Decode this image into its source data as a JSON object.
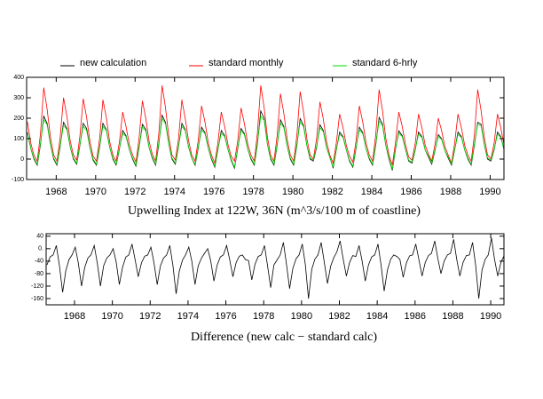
{
  "chart_data": [
    {
      "type": "line",
      "title": "Upwelling Index at 122W, 36N (m^3/s/100 m of coastline)",
      "legend": "top",
      "grid": false,
      "xlim": [
        1966.5,
        1990.7
      ],
      "xticks": [
        1968,
        1970,
        1972,
        1974,
        1976,
        1978,
        1980,
        1982,
        1984,
        1986,
        1988,
        1990
      ],
      "ylim": [
        -100,
        400
      ],
      "yticks": [
        -100,
        0,
        100,
        200,
        300,
        400
      ],
      "x": [
        1966.54,
        1966.71,
        1966.87,
        1967.04,
        1967.2,
        1967.37,
        1967.54,
        1967.71,
        1967.87,
        1968.04,
        1968.2,
        1968.37,
        1968.54,
        1968.71,
        1968.87,
        1969.04,
        1969.2,
        1969.37,
        1969.54,
        1969.71,
        1969.87,
        1970.04,
        1970.2,
        1970.37,
        1970.54,
        1970.71,
        1970.87,
        1971.04,
        1971.2,
        1971.37,
        1971.54,
        1971.71,
        1971.87,
        1972.04,
        1972.2,
        1972.37,
        1972.54,
        1972.71,
        1972.87,
        1973.04,
        1973.2,
        1973.37,
        1973.54,
        1973.71,
        1973.87,
        1974.04,
        1974.2,
        1974.37,
        1974.54,
        1974.71,
        1974.87,
        1975.04,
        1975.2,
        1975.37,
        1975.54,
        1975.71,
        1975.87,
        1976.04,
        1976.2,
        1976.37,
        1976.54,
        1976.71,
        1976.87,
        1977.04,
        1977.2,
        1977.37,
        1977.54,
        1977.71,
        1977.87,
        1978.04,
        1978.2,
        1978.37,
        1978.54,
        1978.71,
        1978.87,
        1979.04,
        1979.2,
        1979.37,
        1979.54,
        1979.71,
        1979.87,
        1980.04,
        1980.2,
        1980.37,
        1980.54,
        1980.71,
        1980.87,
        1981.04,
        1981.2,
        1981.37,
        1981.54,
        1981.71,
        1981.87,
        1982.04,
        1982.2,
        1982.37,
        1982.54,
        1982.71,
        1982.87,
        1983.04,
        1983.2,
        1983.37,
        1983.54,
        1983.71,
        1983.87,
        1984.04,
        1984.2,
        1984.37,
        1984.54,
        1984.71,
        1984.87,
        1985.04,
        1985.2,
        1985.37,
        1985.54,
        1985.71,
        1985.87,
        1986.04,
        1986.2,
        1986.37,
        1986.54,
        1986.71,
        1986.87,
        1987.04,
        1987.2,
        1987.37,
        1987.54,
        1987.71,
        1987.87,
        1988.04,
        1988.2,
        1988.37,
        1988.54,
        1988.71,
        1988.87,
        1989.04,
        1989.2,
        1989.37,
        1989.54,
        1989.71,
        1989.87,
        1990.04,
        1990.2,
        1990.37,
        1990.54,
        1990.71
      ],
      "series": [
        {
          "name": "new calculation",
          "color": "#000000",
          "values": [
            130,
            52,
            0,
            -30,
            70,
            210,
            175,
            70,
            0,
            -30,
            60,
            180,
            150,
            60,
            0,
            -25,
            65,
            175,
            150,
            55,
            -5,
            -30,
            58,
            175,
            145,
            58,
            0,
            -30,
            46,
            140,
            115,
            46,
            0,
            -35,
            55,
            170,
            145,
            55,
            5,
            -30,
            72,
            215,
            180,
            72,
            0,
            -25,
            60,
            175,
            145,
            60,
            5,
            -30,
            52,
            156,
            130,
            52,
            0,
            -40,
            46,
            140,
            115,
            46,
            -5,
            -45,
            50,
            150,
            125,
            50,
            0,
            -30,
            72,
            235,
            200,
            72,
            0,
            -30,
            64,
            192,
            160,
            64,
            0,
            -30,
            66,
            198,
            165,
            66,
            0,
            -10,
            56,
            168,
            140,
            56,
            10,
            -45,
            44,
            132,
            110,
            44,
            -10,
            -40,
            52,
            156,
            130,
            52,
            0,
            -30,
            68,
            204,
            170,
            68,
            0,
            -55,
            46,
            138,
            115,
            46,
            -10,
            -20,
            44,
            132,
            110,
            44,
            10,
            -25,
            40,
            120,
            100,
            40,
            5,
            -30,
            44,
            132,
            110,
            44,
            0,
            -30,
            68,
            180,
            170,
            68,
            0,
            -10,
            44,
            132,
            110,
            44
          ]
        },
        {
          "name": "standard monthly",
          "color": "#ff0000",
          "values": [
            182,
            78,
            20,
            -10,
            123,
            350,
            245,
            105,
            20,
            -10,
            105,
            300,
            210,
            90,
            20,
            -5,
            110,
            295,
            205,
            85,
            15,
            -10,
            100,
            290,
            205,
            85,
            20,
            -10,
            80,
            230,
            160,
            70,
            20,
            -15,
            100,
            285,
            200,
            85,
            25,
            -10,
            126,
            360,
            252,
            108,
            20,
            -5,
            100,
            290,
            200,
            90,
            20,
            -10,
            91,
            260,
            182,
            78,
            20,
            -20,
            80,
            230,
            160,
            70,
            15,
            -10,
            88,
            250,
            175,
            75,
            20,
            -10,
            126,
            360,
            252,
            108,
            20,
            -10,
            112,
            320,
            224,
            96,
            20,
            -10,
            116,
            330,
            231,
            99,
            20,
            0,
            98,
            280,
            196,
            84,
            20,
            -20,
            77,
            220,
            154,
            66,
            15,
            -15,
            91,
            260,
            182,
            78,
            20,
            -10,
            119,
            340,
            238,
            102,
            20,
            -30,
            80,
            230,
            161,
            69,
            10,
            -5,
            77,
            220,
            154,
            66,
            25,
            -10,
            70,
            200,
            140,
            60,
            20,
            -20,
            77,
            220,
            154,
            66,
            20,
            -10,
            119,
            340,
            238,
            102,
            20,
            0,
            77,
            220,
            154,
            66
          ]
        },
        {
          "name": "standard 6-hrly",
          "color": "#00dd00",
          "values": [
            125,
            52,
            5,
            -25,
            77,
            193,
            168,
            70,
            5,
            -25,
            66,
            165,
            144,
            60,
            5,
            -20,
            70,
            160,
            140,
            55,
            0,
            -25,
            64,
            160,
            140,
            58,
            5,
            -25,
            50,
            127,
            110,
            46,
            5,
            -30,
            62,
            157,
            138,
            55,
            10,
            -25,
            80,
            198,
            173,
            72,
            5,
            -20,
            64,
            160,
            140,
            58,
            5,
            -25,
            57,
            143,
            125,
            52,
            5,
            -35,
            50,
            127,
            110,
            46,
            0,
            -40,
            55,
            138,
            120,
            50,
            5,
            -25,
            80,
            210,
            190,
            72,
            5,
            -25,
            70,
            176,
            154,
            64,
            5,
            -25,
            73,
            182,
            158,
            66,
            5,
            -5,
            62,
            154,
            134,
            56,
            10,
            -40,
            48,
            121,
            106,
            44,
            -5,
            -35,
            57,
            143,
            125,
            52,
            5,
            -25,
            75,
            187,
            163,
            68,
            5,
            -50,
            51,
            127,
            110,
            46,
            -5,
            -15,
            48,
            121,
            106,
            44,
            15,
            -20,
            44,
            110,
            96,
            40,
            10,
            -25,
            48,
            121,
            106,
            44,
            5,
            -25,
            75,
            170,
            163,
            68,
            5,
            -5,
            48,
            121,
            106,
            44
          ]
        }
      ]
    },
    {
      "type": "line",
      "title": "Difference (new calc − standard calc)",
      "grid": false,
      "xlim": [
        1966.5,
        1990.7
      ],
      "xticks": [
        1968,
        1970,
        1972,
        1974,
        1976,
        1978,
        1980,
        1982,
        1984,
        1986,
        1988,
        1990
      ],
      "ylim": [
        -180,
        48
      ],
      "yticks": [
        -160,
        -120,
        -80,
        -40,
        {
          "value": 0,
          "label": "0."
        },
        40
      ],
      "x": [
        1966.54,
        1966.71,
        1966.87,
        1967.04,
        1967.2,
        1967.37,
        1967.54,
        1967.71,
        1967.87,
        1968.04,
        1968.2,
        1968.37,
        1968.54,
        1968.71,
        1968.87,
        1969.04,
        1969.2,
        1969.37,
        1969.54,
        1969.71,
        1969.87,
        1970.04,
        1970.2,
        1970.37,
        1970.54,
        1970.71,
        1970.87,
        1971.04,
        1971.2,
        1971.37,
        1971.54,
        1971.71,
        1971.87,
        1972.04,
        1972.2,
        1972.37,
        1972.54,
        1972.71,
        1972.87,
        1973.04,
        1973.2,
        1973.37,
        1973.54,
        1973.71,
        1973.87,
        1974.04,
        1974.2,
        1974.37,
        1974.54,
        1974.71,
        1974.87,
        1975.04,
        1975.2,
        1975.37,
        1975.54,
        1975.71,
        1975.87,
        1976.04,
        1976.2,
        1976.37,
        1976.54,
        1976.71,
        1976.87,
        1977.04,
        1977.2,
        1977.37,
        1977.54,
        1977.71,
        1977.87,
        1978.04,
        1978.2,
        1978.37,
        1978.54,
        1978.71,
        1978.87,
        1979.04,
        1979.2,
        1979.37,
        1979.54,
        1979.71,
        1979.87,
        1980.04,
        1980.2,
        1980.37,
        1980.54,
        1980.71,
        1980.87,
        1981.04,
        1981.2,
        1981.37,
        1981.54,
        1981.71,
        1981.87,
        1982.04,
        1982.2,
        1982.37,
        1982.54,
        1982.71,
        1982.87,
        1983.04,
        1983.2,
        1983.37,
        1983.54,
        1983.71,
        1983.87,
        1984.04,
        1984.2,
        1984.37,
        1984.54,
        1984.71,
        1984.87,
        1985.04,
        1985.2,
        1985.37,
        1985.54,
        1985.71,
        1985.87,
        1986.04,
        1986.2,
        1986.37,
        1986.54,
        1986.71,
        1986.87,
        1987.04,
        1987.2,
        1987.37,
        1987.54,
        1987.71,
        1987.87,
        1988.04,
        1988.2,
        1988.37,
        1988.54,
        1988.71,
        1988.87,
        1989.04,
        1989.2,
        1989.37,
        1989.54,
        1989.71,
        1989.87,
        1990.04,
        1990.2,
        1990.37,
        1990.54,
        1990.71
      ],
      "series": [
        {
          "color": "#000000",
          "values": [
            -52,
            -26,
            -20,
            10,
            -53,
            -140,
            -70,
            -35,
            -20,
            5,
            -45,
            -120,
            -60,
            -30,
            -20,
            10,
            -45,
            -120,
            -55,
            -30,
            -20,
            0,
            -42,
            -115,
            -60,
            -27,
            -20,
            15,
            -34,
            -90,
            -45,
            -24,
            -20,
            5,
            -45,
            -115,
            -55,
            -30,
            -20,
            10,
            -54,
            -145,
            -72,
            -36,
            -20,
            5,
            -40,
            -115,
            -55,
            -30,
            -15,
            0,
            -39,
            -104,
            -52,
            -26,
            -20,
            10,
            -34,
            -90,
            -45,
            -24,
            -20,
            -35,
            -38,
            -100,
            -50,
            -25,
            -20,
            10,
            -54,
            -125,
            -52,
            -36,
            -20,
            20,
            -48,
            -128,
            -64,
            -32,
            -20,
            15,
            -50,
            -160,
            -66,
            -33,
            -20,
            20,
            -42,
            -112,
            -56,
            -28,
            -10,
            25,
            -33,
            -88,
            -44,
            -22,
            -25,
            10,
            -39,
            -104,
            -52,
            -26,
            -20,
            15,
            -51,
            -136,
            -68,
            -34,
            -20,
            -25,
            -34,
            -92,
            -46,
            -23,
            -20,
            15,
            -33,
            -88,
            -44,
            -22,
            -15,
            25,
            -30,
            -80,
            -40,
            -20,
            -15,
            30,
            -33,
            -88,
            -44,
            -22,
            -20,
            20,
            -51,
            -160,
            -68,
            -34,
            -20,
            35,
            -33,
            -88,
            -44,
            -22
          ]
        }
      ]
    }
  ]
}
